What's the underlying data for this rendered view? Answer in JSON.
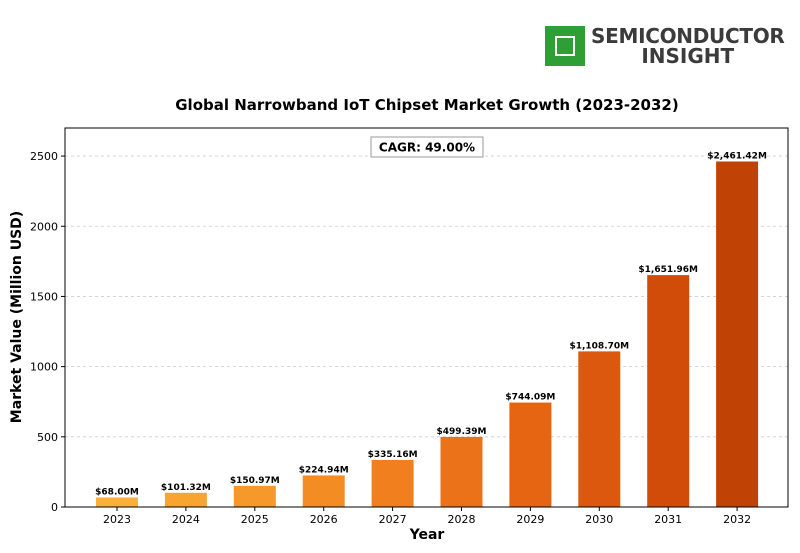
{
  "logo": {
    "line1": "SEMICONDUCTOR",
    "line2": "INSIGHT"
  },
  "chart_data": {
    "type": "bar",
    "title": "Global Narrowband IoT Chipset Market Growth (2023-2032)",
    "xlabel": "Year",
    "ylabel": "Market Value (Million USD)",
    "annotation": "CAGR: 49.00%",
    "categories": [
      "2023",
      "2024",
      "2025",
      "2026",
      "2027",
      "2028",
      "2029",
      "2030",
      "2031",
      "2032"
    ],
    "values": [
      68.0,
      101.32,
      150.97,
      224.94,
      335.16,
      499.39,
      744.09,
      1108.7,
      1651.96,
      2461.42
    ],
    "value_labels": [
      "$68.00M",
      "$101.32M",
      "$150.97M",
      "$224.94M",
      "$335.16M",
      "$499.39M",
      "$744.09M",
      "$1,108.70M",
      "$1,651.96M",
      "$2,461.42M"
    ],
    "yticks": [
      0,
      500,
      1000,
      1500,
      2000,
      2500
    ],
    "ylim": [
      0,
      2700
    ],
    "grid": true,
    "bar_colors": [
      "#fbb03b",
      "#f9a431",
      "#f7982a",
      "#f48c24",
      "#f17f1e",
      "#ec7219",
      "#e56513",
      "#dc580e",
      "#d04c08",
      "#c04204"
    ]
  }
}
